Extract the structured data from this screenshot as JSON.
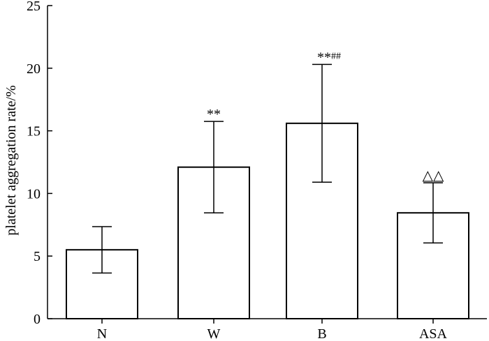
{
  "chart_data": {
    "type": "bar",
    "categories": [
      "N",
      "W",
      "B",
      "ASA"
    ],
    "values": [
      5.5,
      12.1,
      15.6,
      8.45
    ],
    "error": [
      1.85,
      3.65,
      4.7,
      2.4
    ],
    "annotations": [
      {
        "main": "",
        "sup": ""
      },
      {
        "main": "**",
        "sup": ""
      },
      {
        "main": "**",
        "sup": "##"
      },
      {
        "main": "△△",
        "sup": ""
      }
    ],
    "title": "",
    "xlabel": "",
    "ylabel": "platelet aggregation rate/%",
    "ylim": [
      0,
      25
    ],
    "yticks": [
      0,
      5,
      10,
      15,
      20,
      25
    ],
    "grid": false,
    "colors": {
      "bar_fill": "#ffffff",
      "bar_stroke": "#000000",
      "axis": "#000000"
    }
  }
}
